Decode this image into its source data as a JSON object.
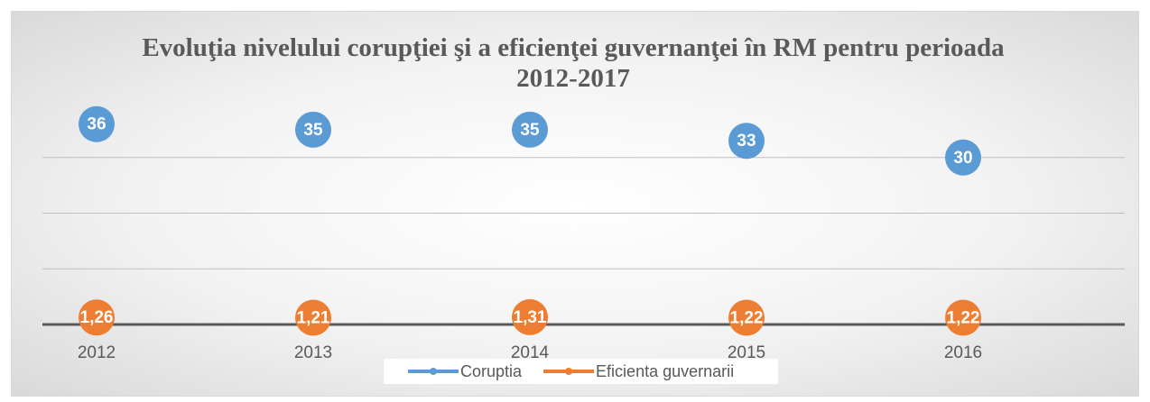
{
  "chart_data": {
    "type": "line",
    "title": "Evoluţia nivelului corupţiei şi a eficienţei guvernanţei în RM pentru perioada 2012-2017",
    "categories": [
      "2012",
      "2013",
      "2014",
      "2015",
      "2016"
    ],
    "series": [
      {
        "name": "Coruptia",
        "color": "#5b9bd5",
        "values": [
          36,
          35,
          35,
          33,
          30
        ]
      },
      {
        "name": "Eficienta guvernarii",
        "color": "#ed7d31",
        "values": [
          1.26,
          1.21,
          1.31,
          1.22,
          1.22
        ],
        "value_labels": [
          "1,26",
          "1,21",
          "1,31",
          "1,22",
          "1,22"
        ]
      }
    ],
    "ylim": [
      0,
      40
    ],
    "yticks": [
      0,
      10,
      20,
      30
    ],
    "grid": true,
    "legend": "bottom"
  }
}
